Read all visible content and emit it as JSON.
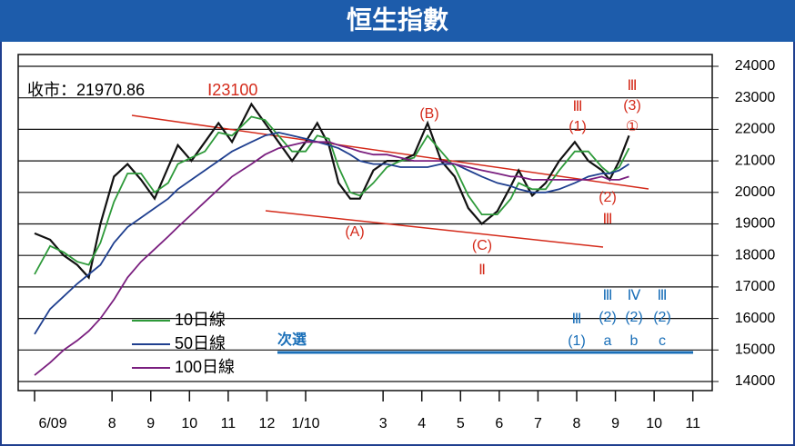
{
  "chart_data": {
    "type": "line",
    "title": "恒生指數",
    "annotations": [
      "收市：21970.86",
      "Ⅰ23100",
      "(A)",
      "(B)",
      "(C)",
      "Ⅱ",
      "Ⅲ",
      "(1)",
      "Ⅲ",
      "(3)",
      "①",
      "(2)",
      "Ⅲ",
      "次選",
      "Ⅲ",
      "(1)",
      "Ⅲ",
      "(2)",
      "a",
      "Ⅳ",
      "(2)",
      "b",
      "Ⅲ",
      "(2)",
      "c"
    ],
    "x": [
      0,
      0.4,
      0.75,
      1.1,
      1.4,
      1.7,
      2.05,
      2.4,
      2.75,
      3.1,
      3.45,
      3.7,
      4.05,
      4.4,
      4.75,
      5.1,
      5.6,
      5.95,
      6.3,
      6.65,
      7.0,
      7.3,
      7.6,
      7.85,
      8.15,
      8.4,
      8.75,
      9.1,
      9.45,
      9.8,
      10.15,
      10.5,
      10.85,
      11.2,
      11.55,
      11.95,
      12.3,
      12.5,
      12.85,
      13.2,
      13.55,
      13.95,
      14.3,
      14.65,
      14.85,
      15.1,
      15.35
    ],
    "series": [
      {
        "color": "#111111",
        "values": [
          18700,
          18500,
          18000,
          17700,
          17300,
          19000,
          20500,
          20900,
          20400,
          19800,
          20800,
          21500,
          21000,
          21600,
          22200,
          21600,
          22800,
          22200,
          21600,
          21000,
          21600,
          22200,
          21500,
          20300,
          19800,
          19800,
          20700,
          21000,
          21000,
          21200,
          22200,
          21000,
          20500,
          19500,
          19000,
          19400,
          20200,
          20700,
          19900,
          20300,
          21000,
          21600,
          21000,
          20700,
          20400,
          21000,
          21800
        ]
      },
      {
        "name": "10日線",
        "color": "#2e9a3a",
        "values": [
          17400,
          18300,
          18100,
          17800,
          17700,
          18400,
          19700,
          20600,
          20600,
          20000,
          20300,
          20900,
          21100,
          21300,
          21900,
          21800,
          22400,
          22300,
          21800,
          21300,
          21300,
          21800,
          21700,
          20800,
          20000,
          19900,
          20300,
          20800,
          21000,
          21100,
          21800,
          21300,
          20800,
          19900,
          19300,
          19300,
          19800,
          20300,
          20100,
          20100,
          20700,
          21300,
          21300,
          20800,
          20600,
          20800,
          21400
        ]
      },
      {
        "name": "50日線",
        "color": "#1f3f8f",
        "values": [
          15500,
          16300,
          16700,
          17100,
          17400,
          17700,
          18400,
          18900,
          19200,
          19500,
          19800,
          20100,
          20400,
          20700,
          21000,
          21300,
          21600,
          21800,
          21900,
          21800,
          21700,
          21600,
          21500,
          21400,
          21200,
          21000,
          20900,
          20900,
          20800,
          20800,
          20800,
          20900,
          20900,
          20700,
          20500,
          20300,
          20200,
          20100,
          20000,
          20000,
          20100,
          20300,
          20500,
          20600,
          20600,
          20700,
          20900
        ]
      },
      {
        "name": "100日線",
        "color": "#7a1f7f",
        "values": [
          14200,
          14600,
          15000,
          15300,
          15600,
          16000,
          16600,
          17300,
          17800,
          18200,
          18600,
          18900,
          19300,
          19700,
          20100,
          20500,
          20900,
          21200,
          21400,
          21500,
          21600,
          21600,
          21600,
          21500,
          21400,
          21300,
          21200,
          21200,
          21100,
          21000,
          21000,
          21000,
          20900,
          20800,
          20700,
          20600,
          20500,
          20500,
          20400,
          20400,
          20400,
          20400,
          20400,
          20500,
          20400,
          20400,
          20500
        ]
      }
    ],
    "xlim": [
      -0.4,
      17.5
    ],
    "xticks": [
      {
        "value": 0,
        "label": "6/09"
      },
      {
        "value": 2,
        "label": "8"
      },
      {
        "value": 3,
        "label": "9"
      },
      {
        "value": 4,
        "label": "10"
      },
      {
        "value": 5,
        "label": "11"
      },
      {
        "value": 6,
        "label": "12"
      },
      {
        "value": 7,
        "label": "1/10"
      },
      {
        "value": 9,
        "label": "3"
      },
      {
        "value": 10,
        "label": "4"
      },
      {
        "value": 11,
        "label": "5"
      },
      {
        "value": 12,
        "label": "6"
      },
      {
        "value": 13,
        "label": "7"
      },
      {
        "value": 14,
        "label": "8"
      },
      {
        "value": 15,
        "label": "9"
      },
      {
        "value": 16,
        "label": "10"
      },
      {
        "value": 17,
        "label": "11"
      }
    ],
    "ylim": [
      14000,
      24000
    ],
    "yticks": [
      14000,
      15000,
      16000,
      17000,
      18000,
      19000,
      20000,
      21000,
      22000,
      23000,
      24000
    ],
    "grid": true
  }
}
